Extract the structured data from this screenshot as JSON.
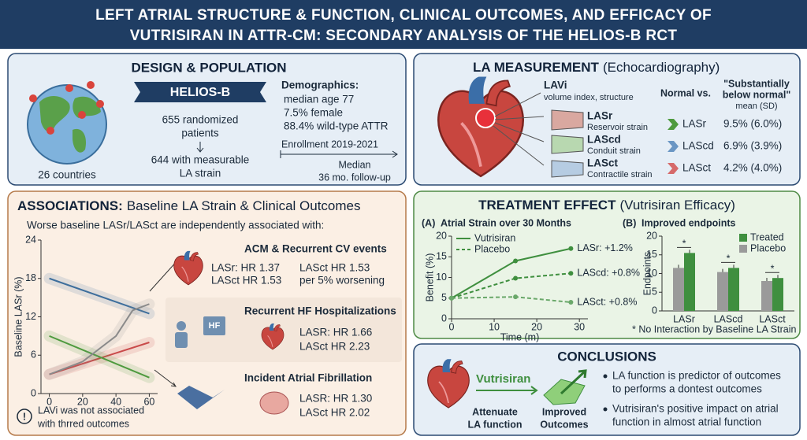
{
  "header": {
    "title_lines": [
      "LEFT ATRIAL STRUCTURE & FUNCTION, CLINICAL OUTCOMES, AND EFFICACY OF",
      "VUTRISIRAN IN ATTR-CM: SECONDARY ANALYSIS OF THE HELIOS-B RCT"
    ]
  },
  "design": {
    "heading": "DESIGN & POPULATION",
    "countries": "26 countries",
    "trial": "HELIOS-B",
    "randomized": [
      "655 randomized",
      "patients"
    ],
    "measurable": [
      "644 with measurable",
      "LA strain"
    ],
    "demographics_heading": "Demographics:",
    "demographics": [
      "median age 77",
      "7.5% female",
      "88.4% wild-type ATTR"
    ],
    "enrollment": "Enrollment 2019-2021",
    "followup": [
      "Median",
      "36 mo. follow-up"
    ]
  },
  "measurement": {
    "heading": "LA MEASUREMENT",
    "subheading": "(Echocardiography)",
    "lavi": {
      "name": "LAVi",
      "desc": "volume index, structure"
    },
    "strains": [
      {
        "name": "LASr",
        "desc": "Reservoir strain"
      },
      {
        "name": "LAScd",
        "desc": "Conduit strain"
      },
      {
        "name": "LASct",
        "desc": "Contractile strain"
      }
    ],
    "table": {
      "header": "Normal vs.",
      "header2": [
        "\"Substantially",
        "below normal\""
      ],
      "subheader": "mean (SD)",
      "rows": [
        [
          "LASr",
          "9.5% (6.0%)"
        ],
        [
          "LAScd",
          "6.9% (3.9%)"
        ],
        [
          "LASct",
          "4.2% (4.0%)"
        ]
      ]
    }
  },
  "associations": {
    "heading": "ASSOCIATIONS:",
    "subheading": "Baseline LA Strain & Clinical Outcomes",
    "intro": "Worse baseline LASr/LASct are independently associated with:",
    "outcomes": [
      {
        "title": "ACM & Recurrent CV events",
        "lines": [
          "LASr: HR 1.37",
          "LASct HR 1.53",
          "LASct HR 1.53",
          "per 5% worsening"
        ]
      },
      {
        "title": "Recurrent HF Hospitalizations",
        "icon": "HF",
        "lines": [
          "LASR: HR 1.66",
          "LASct HR 2.23"
        ]
      },
      {
        "title": "Incident Atrial Fibrillation",
        "lines": [
          "LASR: HR 1.30",
          "LASct HR 2.02"
        ]
      }
    ],
    "note_icon": "!",
    "note": [
      "LAVi was not associated",
      "with thrred outcomes"
    ]
  },
  "treatment": {
    "heading": "TREATMENT EFFECT",
    "subheading": "(Vutrisiran Efficacy)"
  },
  "conclusions": {
    "heading": "CONCLUSIONS",
    "drug": "Vutrisiran",
    "steps": [
      [
        "Attenuate",
        "LA function"
      ],
      [
        "Improved",
        "Outcomes"
      ]
    ],
    "bullets": [
      [
        "LA function is predictor of outcomes",
        "to performs a dontest outcomes"
      ],
      [
        "Vutrisiran's positive impact on atrial",
        "function in almost atrial function"
      ]
    ]
  },
  "chart_data": [
    {
      "type": "line",
      "y_label": "Baseline LASr (%)",
      "xlim": [
        -5,
        65
      ],
      "xticks": [
        0,
        20,
        40,
        60
      ],
      "ylim": [
        0,
        24
      ],
      "yticks": [
        0,
        6,
        12,
        18,
        24
      ],
      "series": [
        {
          "color": "#3d6e9c",
          "x": [
            0,
            60
          ],
          "values": [
            18,
            12.5
          ]
        },
        {
          "color": "#c94a4a",
          "x": [
            0,
            60
          ],
          "values": [
            3,
            8
          ]
        },
        {
          "color": "#4e9a3e",
          "x": [
            0,
            60
          ],
          "values": [
            9,
            2.5
          ]
        },
        {
          "color": "#8a8a8a",
          "x": [
            0,
            20,
            40,
            50,
            60
          ],
          "values": [
            3,
            5,
            9,
            13,
            14
          ]
        }
      ]
    },
    {
      "type": "line",
      "panel": "(A)",
      "title": "Atrial Strain over 30 Months",
      "x_label": "Time (m)",
      "y_label": "Benefit (%)",
      "xlim": [
        0,
        32
      ],
      "xticks": [
        0,
        10,
        20,
        30
      ],
      "ylim": [
        0,
        20
      ],
      "yticks": [
        0,
        5,
        10,
        15,
        20
      ],
      "legend": "top-left",
      "series": [
        {
          "name": "Vutrisiran",
          "color": "#3f8f3f",
          "dashed": false,
          "x": [
            0,
            15,
            28
          ],
          "values": [
            5,
            14,
            17
          ],
          "label": "LASr: +1.2%"
        },
        {
          "name": "Placebo",
          "color": "#3f8f3f",
          "dashed": true,
          "x": [
            0,
            15,
            28
          ],
          "values": [
            5,
            9.8,
            11
          ],
          "label": "LAScd: +0.8%"
        },
        {
          "color": "#6aa86a",
          "dashed": true,
          "x": [
            0,
            15,
            28
          ],
          "values": [
            5,
            5.3,
            4
          ],
          "label": "LASct: +0.8%"
        }
      ]
    },
    {
      "type": "bar",
      "panel": "(B)",
      "title": "Improved endpoints",
      "y_label": "Endpoints",
      "categories": [
        "LASr",
        "LAScd",
        "LASct"
      ],
      "ylim": [
        0,
        20
      ],
      "yticks": [
        0,
        5,
        10,
        15,
        20
      ],
      "legend": "top-right",
      "series": [
        {
          "name": "Treated",
          "color": "#3f8f3f",
          "values": [
            15.5,
            11.5,
            8.8
          ]
        },
        {
          "name": "Placebo",
          "color": "#9a9a9a",
          "values": [
            11.5,
            10.4,
            8
          ]
        }
      ],
      "significance": [
        "*",
        "*",
        "*"
      ],
      "footnote": "* No Interaction by Baseline LA Strain"
    }
  ]
}
